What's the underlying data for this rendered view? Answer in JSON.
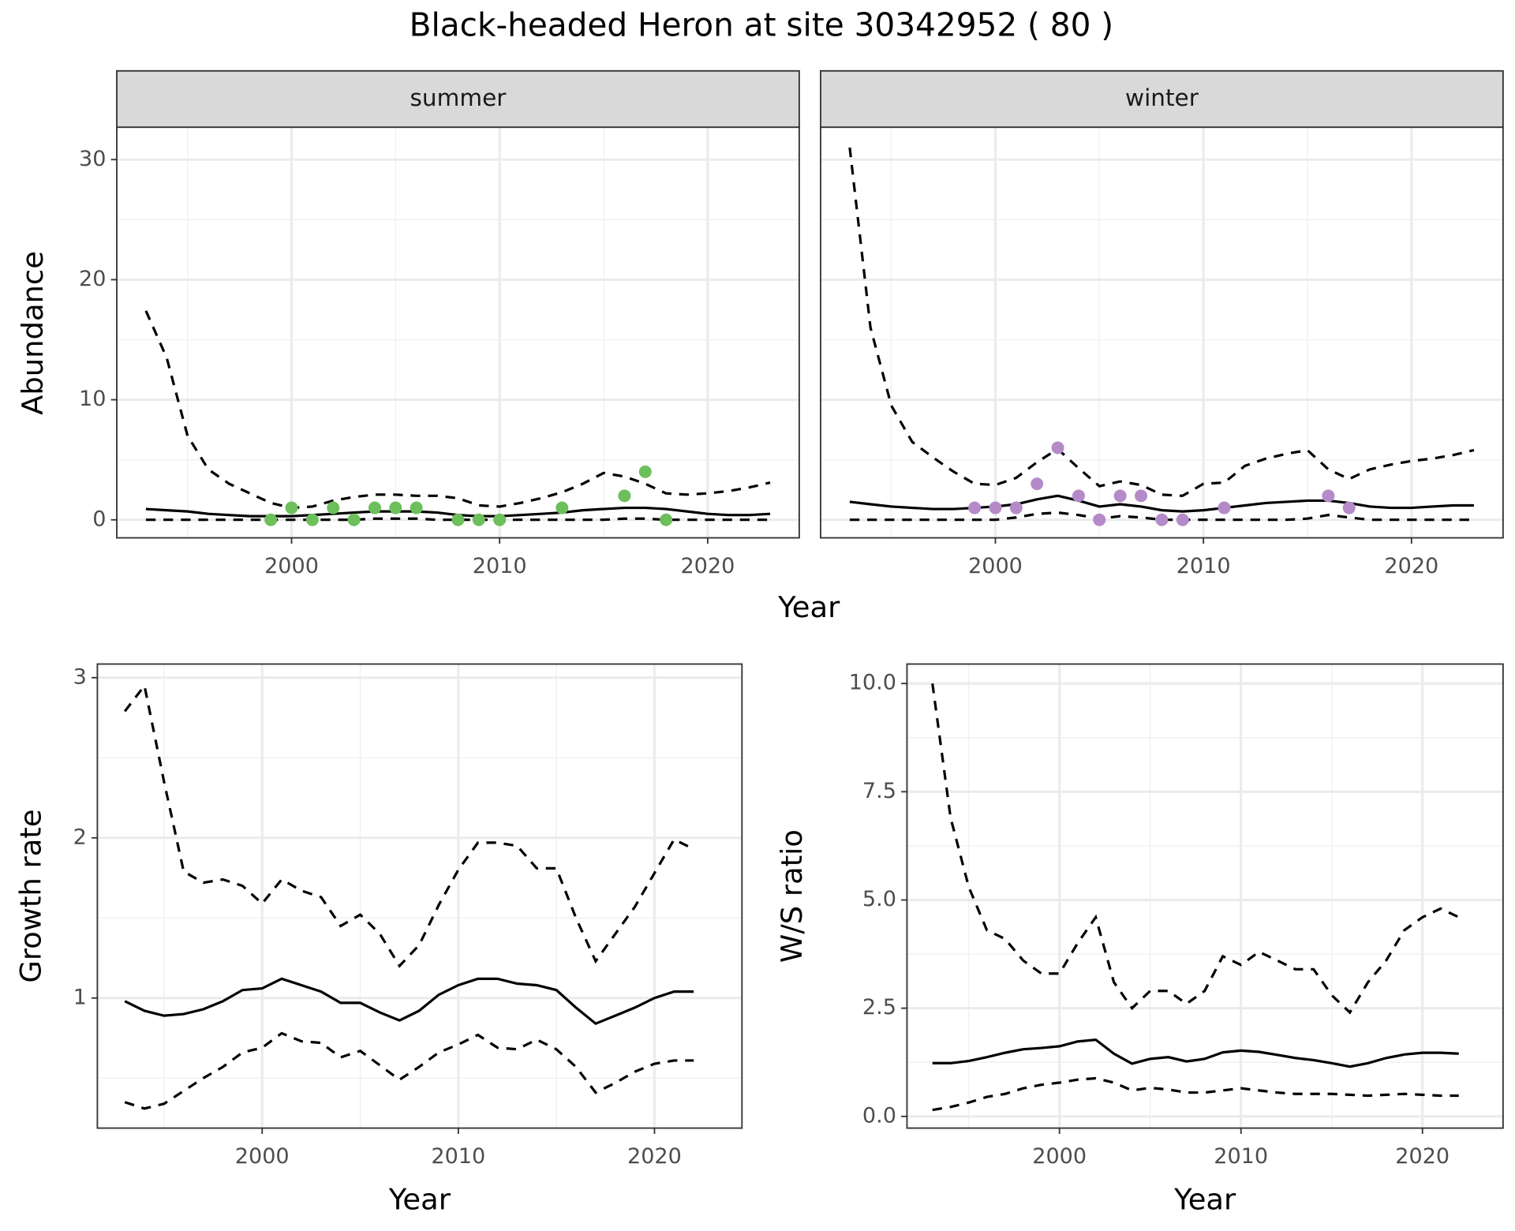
{
  "title": "Black-headed Heron at site 30342952 ( 80 )",
  "chart_data": [
    {
      "type": "line",
      "facet": "summer",
      "ylabel": "Abundance",
      "xlabel": "Year",
      "xlim": [
        1991.6,
        2024.4
      ],
      "ylim": [
        -1.5,
        32.7
      ],
      "xticks": [
        2000,
        2010,
        2020
      ],
      "yticks": [
        0,
        10,
        20,
        30
      ],
      "xminor": [
        1995,
        2005,
        2015
      ],
      "yminor": [
        5,
        15,
        25
      ],
      "grid": true,
      "color": "#000000",
      "x": [
        1993,
        1994,
        1995,
        1996,
        1997,
        1998,
        1999,
        2000,
        2001,
        2002,
        2003,
        2004,
        2005,
        2006,
        2007,
        2008,
        2009,
        2010,
        2011,
        2012,
        2013,
        2014,
        2015,
        2016,
        2017,
        2018,
        2019,
        2020,
        2021,
        2022,
        2023
      ],
      "series": [
        {
          "style": "solid",
          "values": [
            0.9,
            0.8,
            0.7,
            0.5,
            0.4,
            0.3,
            0.3,
            0.3,
            0.4,
            0.5,
            0.6,
            0.7,
            0.7,
            0.7,
            0.6,
            0.4,
            0.3,
            0.3,
            0.4,
            0.5,
            0.6,
            0.8,
            0.9,
            1.0,
            1.0,
            0.9,
            0.7,
            0.5,
            0.4,
            0.4,
            0.5
          ]
        },
        {
          "style": "dashed",
          "values": [
            17.4,
            13.5,
            7,
            4.2,
            3,
            2.2,
            1.4,
            1.0,
            1.1,
            1.6,
            1.9,
            2.1,
            2.1,
            2.0,
            2.0,
            1.8,
            1.2,
            1.1,
            1.4,
            1.8,
            2.3,
            3.0,
            3.9,
            3.6,
            3.0,
            2.2,
            2.1,
            2.2,
            2.4,
            2.7,
            3.1
          ]
        },
        {
          "style": "dashed",
          "values": [
            0,
            0,
            0,
            0,
            0,
            0,
            0,
            0,
            0,
            0,
            0,
            0.1,
            0.1,
            0.1,
            0,
            0,
            0,
            0,
            0,
            0,
            0,
            0,
            0,
            0.1,
            0.1,
            0,
            0,
            0,
            0,
            0,
            0
          ]
        }
      ],
      "points": {
        "color": "#6cbf5b",
        "x": [
          1999,
          2000,
          2001,
          2002,
          2003,
          2004,
          2005,
          2006,
          2008,
          2009,
          2010,
          2013,
          2016,
          2017,
          2018
        ],
        "values": [
          0,
          1,
          0,
          1,
          0,
          1,
          1,
          1,
          0,
          0,
          0,
          1,
          2,
          4,
          0
        ]
      }
    },
    {
      "type": "line",
      "facet": "winter",
      "xlim": [
        1991.6,
        2024.4
      ],
      "ylim": [
        -1.5,
        32.7
      ],
      "xticks": [
        2000,
        2010,
        2020
      ],
      "xminor": [
        1995,
        2005,
        2015
      ],
      "ygrid": [
        0,
        10,
        20,
        30
      ],
      "yminor": [
        5,
        15,
        25
      ],
      "grid": true,
      "color": "#000000",
      "x": [
        1993,
        1994,
        1995,
        1996,
        1997,
        1998,
        1999,
        2000,
        2001,
        2002,
        2003,
        2004,
        2005,
        2006,
        2007,
        2008,
        2009,
        2010,
        2011,
        2012,
        2013,
        2014,
        2015,
        2016,
        2017,
        2018,
        2019,
        2020,
        2021,
        2022,
        2023
      ],
      "series": [
        {
          "style": "solid",
          "values": [
            1.5,
            1.3,
            1.1,
            1.0,
            0.9,
            0.9,
            1.0,
            1.1,
            1.3,
            1.7,
            2.0,
            1.6,
            1.1,
            1.3,
            1.1,
            0.8,
            0.7,
            0.8,
            1.0,
            1.2,
            1.4,
            1.5,
            1.6,
            1.6,
            1.4,
            1.1,
            1.0,
            1.0,
            1.1,
            1.2,
            1.2
          ]
        },
        {
          "style": "dashed",
          "values": [
            31,
            16,
            9.5,
            6.5,
            5.2,
            4,
            3,
            2.9,
            3.5,
            4.8,
            5.9,
            4.3,
            2.8,
            3.2,
            2.9,
            2.1,
            2.0,
            3.0,
            3.1,
            4.5,
            5.1,
            5.5,
            5.8,
            4.2,
            3.4,
            4.2,
            4.6,
            4.9,
            5.1,
            5.4,
            5.8
          ]
        },
        {
          "style": "dashed",
          "values": [
            0,
            0,
            0,
            0,
            0,
            0,
            0,
            0,
            0.2,
            0.5,
            0.6,
            0.4,
            0.1,
            0.3,
            0.2,
            0,
            0,
            0,
            0,
            0,
            0,
            0,
            0.1,
            0.4,
            0.2,
            0,
            0,
            0,
            0,
            0,
            0
          ]
        }
      ],
      "points": {
        "color": "#b48ac8",
        "x": [
          1999,
          2000,
          2001,
          2002,
          2003,
          2004,
          2005,
          2006,
          2007,
          2008,
          2009,
          2011,
          2016,
          2017
        ],
        "values": [
          1,
          1,
          1,
          3,
          6,
          2,
          0,
          2,
          2,
          0,
          0,
          1,
          2,
          1
        ]
      }
    },
    {
      "type": "line",
      "ylabel": "Growth rate",
      "xlabel": "Year",
      "xlim": [
        1991.6,
        2024.46
      ],
      "ylim": [
        0.188,
        3.085
      ],
      "xticks": [
        2000,
        2010,
        2020
      ],
      "yticks": [
        1,
        2,
        3
      ],
      "xminor": [
        1995,
        2005,
        2015
      ],
      "yminor": [
        0.5,
        1.5,
        2.5
      ],
      "grid": true,
      "color": "#000000",
      "x": [
        1993,
        1994,
        1995,
        1996,
        1997,
        1998,
        1999,
        2000,
        2001,
        2002,
        2003,
        2004,
        2005,
        2006,
        2007,
        2008,
        2009,
        2010,
        2011,
        2012,
        2013,
        2014,
        2015,
        2016,
        2017,
        2018,
        2019,
        2020,
        2021,
        2022
      ],
      "series": [
        {
          "style": "solid",
          "values": [
            0.98,
            0.92,
            0.89,
            0.9,
            0.93,
            0.98,
            1.05,
            1.06,
            1.12,
            1.08,
            1.04,
            0.97,
            0.97,
            0.91,
            0.86,
            0.92,
            1.02,
            1.08,
            1.12,
            1.12,
            1.09,
            1.08,
            1.05,
            0.94,
            0.84,
            0.89,
            0.94,
            1.0,
            1.04,
            1.04
          ]
        },
        {
          "style": "dashed",
          "values": [
            2.79,
            2.95,
            2.35,
            1.79,
            1.72,
            1.74,
            1.7,
            1.59,
            1.74,
            1.67,
            1.63,
            1.45,
            1.52,
            1.4,
            1.2,
            1.33,
            1.58,
            1.8,
            1.97,
            1.97,
            1.95,
            1.81,
            1.81,
            1.5,
            1.23,
            1.4,
            1.57,
            1.78,
            1.99,
            1.93
          ]
        },
        {
          "style": "dashed",
          "values": [
            0.35,
            0.31,
            0.34,
            0.42,
            0.5,
            0.57,
            0.66,
            0.69,
            0.78,
            0.73,
            0.72,
            0.63,
            0.67,
            0.58,
            0.49,
            0.57,
            0.66,
            0.71,
            0.77,
            0.69,
            0.68,
            0.74,
            0.68,
            0.57,
            0.41,
            0.47,
            0.54,
            0.59,
            0.61,
            0.61
          ]
        }
      ]
    },
    {
      "type": "line",
      "ylabel": "W/S ratio",
      "xlabel": "Year",
      "xlim": [
        1991.6,
        2024.44
      ],
      "ylim": [
        -0.27,
        10.45
      ],
      "xticks": [
        2000,
        2010,
        2020
      ],
      "yticks": [
        {
          "value": 0,
          "label": "0.0"
        },
        {
          "value": 2.5,
          "label": "2.5"
        },
        {
          "value": 5,
          "label": "5.0"
        },
        {
          "value": 7.5,
          "label": "7.5"
        },
        {
          "value": 10,
          "label": "10.0"
        }
      ],
      "xminor": [
        1995,
        2005,
        2015
      ],
      "yminor": [
        1.25,
        3.75,
        6.25,
        8.75
      ],
      "grid": true,
      "color": "#000000",
      "x": [
        1993,
        1994,
        1995,
        1996,
        1997,
        1998,
        1999,
        2000,
        2001,
        2002,
        2003,
        2004,
        2005,
        2006,
        2007,
        2008,
        2009,
        2010,
        2011,
        2012,
        2013,
        2014,
        2015,
        2016,
        2017,
        2018,
        2019,
        2020,
        2021,
        2022
      ],
      "series": [
        {
          "style": "solid",
          "values": [
            1.23,
            1.23,
            1.28,
            1.37,
            1.47,
            1.55,
            1.58,
            1.62,
            1.73,
            1.77,
            1.45,
            1.22,
            1.33,
            1.37,
            1.27,
            1.33,
            1.48,
            1.52,
            1.49,
            1.42,
            1.35,
            1.3,
            1.23,
            1.15,
            1.23,
            1.35,
            1.43,
            1.47,
            1.47,
            1.45
          ]
        },
        {
          "style": "dashed",
          "values": [
            10.0,
            6.9,
            5.3,
            4.3,
            4.1,
            3.6,
            3.3,
            3.3,
            4.0,
            4.6,
            3.1,
            2.5,
            2.9,
            2.9,
            2.6,
            2.9,
            3.7,
            3.5,
            3.8,
            3.6,
            3.4,
            3.4,
            2.8,
            2.4,
            3.1,
            3.6,
            4.3,
            4.6,
            4.8,
            4.6
          ]
        },
        {
          "style": "dashed",
          "values": [
            0.15,
            0.22,
            0.32,
            0.45,
            0.52,
            0.65,
            0.73,
            0.78,
            0.85,
            0.88,
            0.78,
            0.6,
            0.66,
            0.62,
            0.55,
            0.55,
            0.6,
            0.65,
            0.6,
            0.55,
            0.52,
            0.52,
            0.52,
            0.5,
            0.48,
            0.5,
            0.52,
            0.5,
            0.48,
            0.48
          ]
        }
      ]
    }
  ]
}
